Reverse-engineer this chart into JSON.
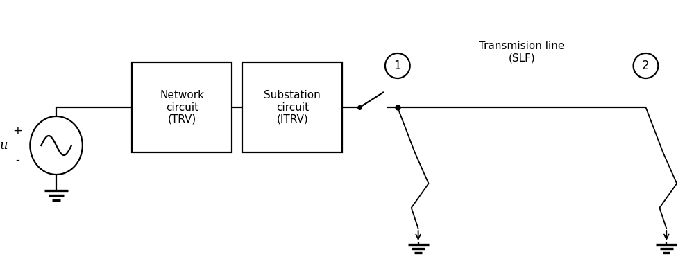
{
  "bg_color": "#ffffff",
  "line_color": "#000000",
  "text_color": "#000000",
  "network_label": "Network\ncircuit\n(TRV)",
  "substation_label": "Substation\ncircuit\n(ITRV)",
  "transmission_label": "Transmision line\n(SLF)",
  "plus_label": "+",
  "minus_label": "-",
  "u_label": "u",
  "node1_label": "1",
  "node2_label": "2",
  "lw": 1.6,
  "font_size_box": 11,
  "font_size_label": 12,
  "font_size_node": 12,
  "font_size_transmission": 11,
  "fig_w": 10.0,
  "fig_h": 4.0,
  "dpi": 100
}
